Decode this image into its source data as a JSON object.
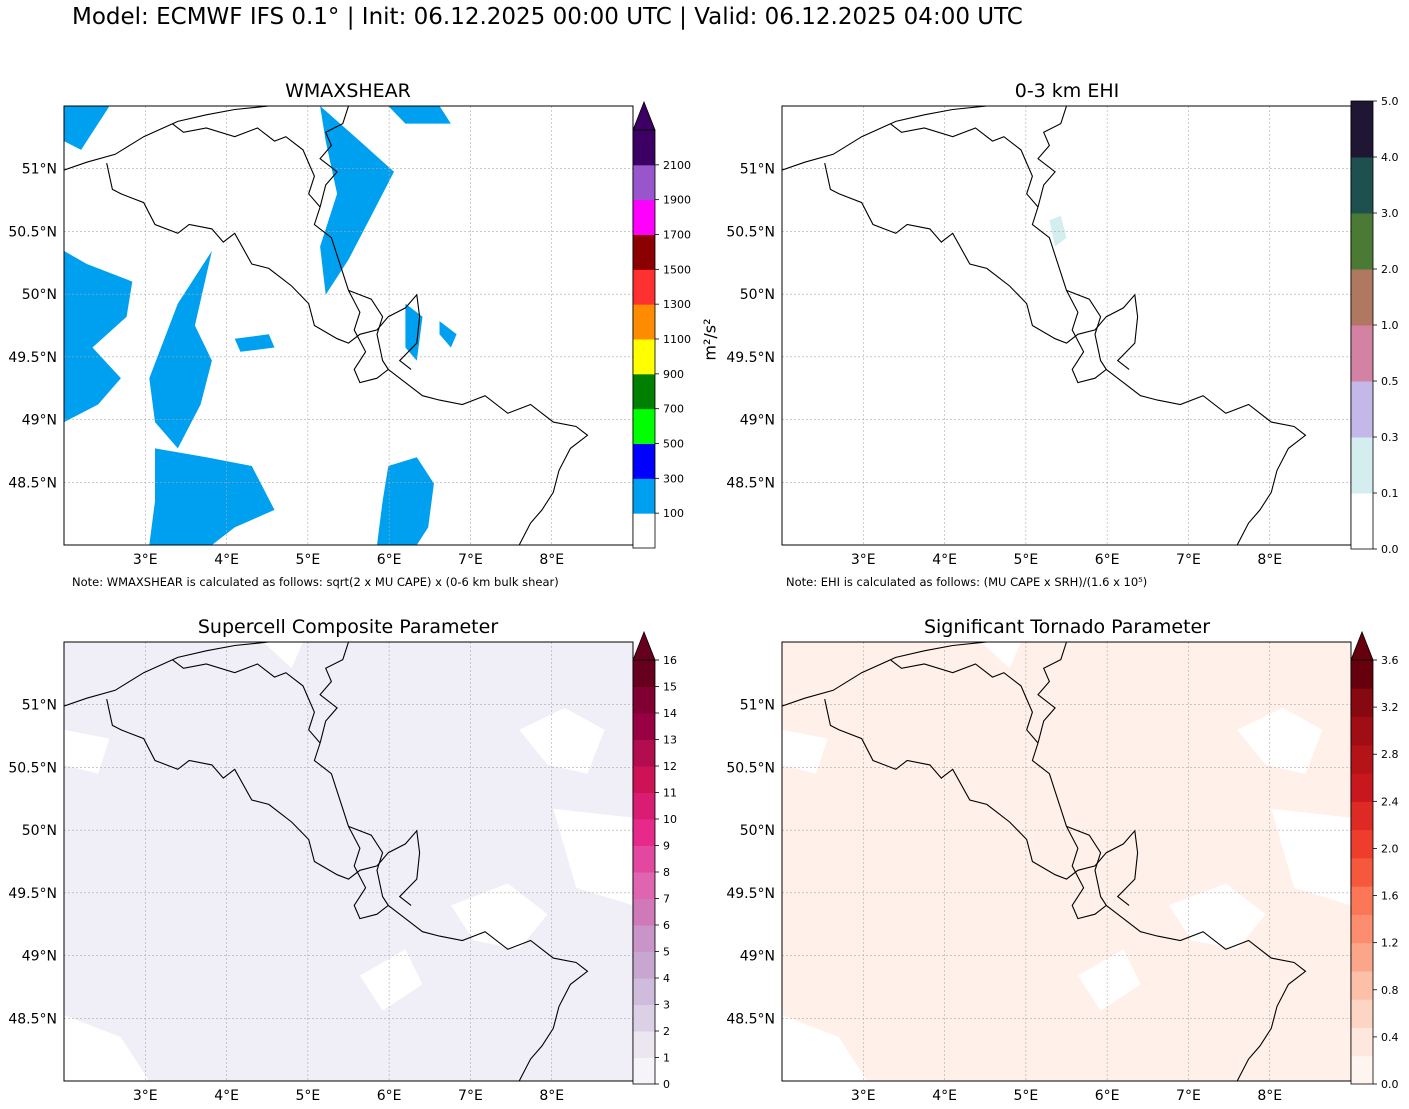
{
  "header": {
    "title": "Model: ECMWF IFS 0.1° | Init: 06.12.2025 00:00 UTC | Valid: 06.12.2025 04:00 UTC"
  },
  "map_axes": {
    "lon_ticks": [
      "3°E",
      "4°E",
      "5°E",
      "6°E",
      "7°E",
      "8°E"
    ],
    "lat_ticks": [
      "51°N",
      "50.5°N",
      "50°N",
      "49.5°N",
      "49°N",
      "48.5°N"
    ],
    "lon_range": [
      2.0,
      9.0
    ],
    "lat_range": [
      48.0,
      51.5
    ]
  },
  "panels": [
    {
      "id": "wmaxshear",
      "title": "WMAXSHEAR",
      "note": "Note: WMAXSHEAR is calculated as follows: sqrt(2 x MU CAPE) x (0-6 km bulk shear)",
      "unit": "m²/s²",
      "fill_color": "#00a0f0",
      "colorbar": {
        "extend_max": true,
        "extend_color": "#3c0064",
        "colors": [
          "#ffffff",
          "#00a0f0",
          "#0000ff",
          "#00ff00",
          "#008000",
          "#ffff00",
          "#ff8c00",
          "#ff3030",
          "#8b0000",
          "#ff00ff",
          "#9955cc",
          "#3c0064"
        ],
        "tick_labels": [
          "100",
          "300",
          "500",
          "700",
          "900",
          "1100",
          "1300",
          "1500",
          "1700",
          "1900",
          "2100"
        ]
      }
    },
    {
      "id": "ehi",
      "title": "0-3 km EHI",
      "note": "Note: EHI is calculated as follows: (MU CAPE x SRH)/(1.6 x 10⁵)",
      "unit": "",
      "fill_color": "#d4eef0",
      "colorbar": {
        "extend_max": false,
        "colors": [
          "#ffffff",
          "#d4eef0",
          "#c4b8e8",
          "#d482a4",
          "#b07860",
          "#4a7a34",
          "#1e5050",
          "#1e1632"
        ],
        "tick_labels": [
          "0.0",
          "0.1",
          "0.3",
          "0.5",
          "1.0",
          "2.0",
          "3.0",
          "4.0",
          "5.0"
        ]
      }
    },
    {
      "id": "scp",
      "title": "Supercell Composite Parameter",
      "note": "",
      "unit": "",
      "fill_color": "#f0eef6",
      "colorbar": {
        "extend_max": true,
        "extend_color": "#67001f",
        "colors": [
          "#f7f4f9",
          "#ece6f1",
          "#dcd0e6",
          "#cfbbdc",
          "#c7a6d0",
          "#c994c7",
          "#d079b8",
          "#df65b0",
          "#e248a0",
          "#e7298a",
          "#d81d73",
          "#ce1256",
          "#b10d4f",
          "#980043",
          "#800033",
          "#67001f"
        ],
        "tick_labels": [
          "0",
          "1",
          "2",
          "3",
          "4",
          "5",
          "6",
          "7",
          "8",
          "9",
          "10",
          "11",
          "12",
          "13",
          "14",
          "15",
          "16"
        ]
      }
    },
    {
      "id": "stp",
      "title": "Significant Tornado Parameter",
      "note": "",
      "unit": "",
      "fill_color": "#fff0e9",
      "colorbar": {
        "extend_max": true,
        "extend_color": "#67000d",
        "colors": [
          "#fff5f0",
          "#fee7dc",
          "#fdd5c4",
          "#fcbfa7",
          "#fca689",
          "#fc8e6f",
          "#fb7757",
          "#f6583e",
          "#ee3d2c",
          "#dd2a24",
          "#c9181d",
          "#b41318",
          "#a00d15",
          "#860811",
          "#67000d"
        ],
        "tick_labels": [
          "0.0",
          "0.4",
          "0.8",
          "1.2",
          "1.6",
          "2.0",
          "2.4",
          "2.8",
          "3.2",
          "3.6"
        ]
      }
    }
  ]
}
